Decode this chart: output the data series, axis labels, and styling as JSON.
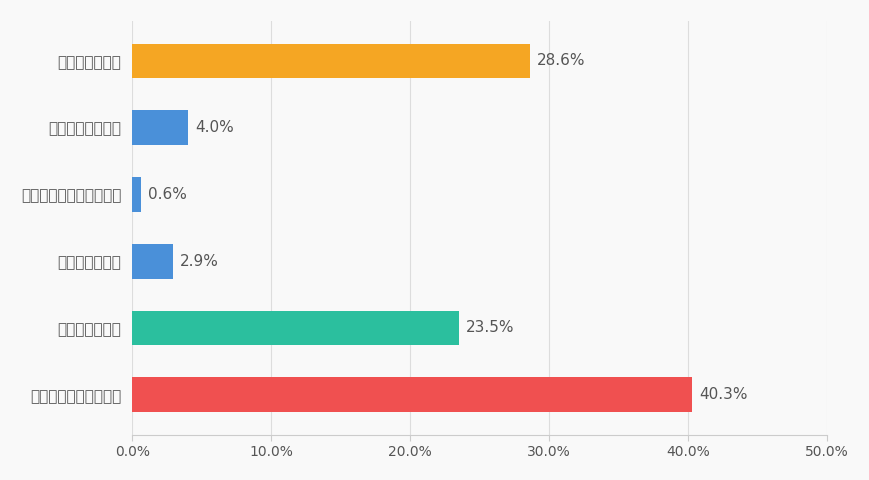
{
  "categories": [
    "自然を含む地球の平和",
    "世界人類の平和",
    "自分の国の平和",
    "自分の学校や地域の平和",
    "自分の家族の平和",
    "自分の心の平和"
  ],
  "values": [
    40.3,
    23.5,
    2.9,
    0.6,
    4.0,
    28.6
  ],
  "colors": [
    "#f05050",
    "#2bbf9e",
    "#4a90d9",
    "#4a90d9",
    "#4a90d9",
    "#f5a623"
  ],
  "labels": [
    "40.3%",
    "23.5%",
    "2.9%",
    "0.6%",
    "4.0%",
    "28.6%"
  ],
  "xlim": [
    0,
    50
  ],
  "xticks": [
    0,
    10,
    20,
    30,
    40,
    50
  ],
  "xticklabels": [
    "0.0%",
    "10.0%",
    "20.0%",
    "30.0%",
    "40.0%",
    "50.0%"
  ],
  "background_color": "#f9f9f9",
  "bar_height": 0.52,
  "label_fontsize": 11,
  "tick_fontsize": 10,
  "category_fontsize": 11
}
